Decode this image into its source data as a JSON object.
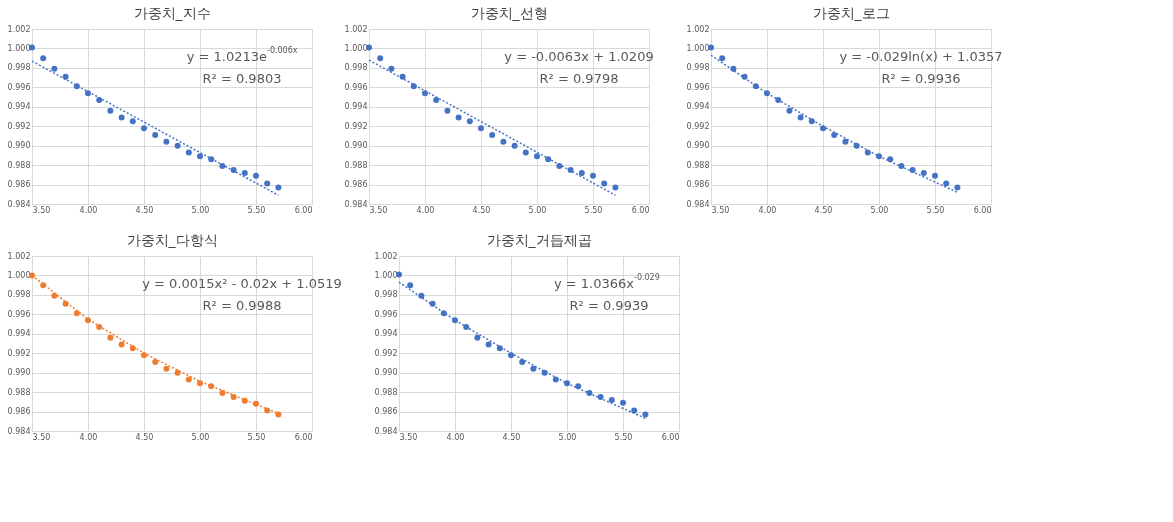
{
  "chart_data": [
    {
      "type": "scatter",
      "title": "가중치_지수",
      "xlim": [
        3.5,
        6.0
      ],
      "xticks": [
        {
          "value": 3.5,
          "label": "3.50"
        },
        {
          "value": 4.0,
          "label": "4.00"
        },
        {
          "value": 4.5,
          "label": "4.50"
        },
        {
          "value": 5.0,
          "label": "5.00"
        },
        {
          "value": 5.5,
          "label": "5.50"
        },
        {
          "value": 6.0,
          "label": "6.00"
        }
      ],
      "ylim": [
        0.984,
        1.002
      ],
      "yticks": [
        {
          "value": 0.984,
          "label": "0.984"
        },
        {
          "value": 0.986,
          "label": "0.986"
        },
        {
          "value": 0.988,
          "label": "0.988"
        },
        {
          "value": 0.99,
          "label": "0.990"
        },
        {
          "value": 0.992,
          "label": "0.992"
        },
        {
          "value": 0.994,
          "label": "0.994"
        },
        {
          "value": 0.996,
          "label": "0.996"
        },
        {
          "value": 0.998,
          "label": "0.998"
        },
        {
          "value": 1.0,
          "label": "1.000"
        },
        {
          "value": 1.002,
          "label": "1.002"
        }
      ],
      "grid": true,
      "annotations": [
        "y = 1.0213e$^{-0.006x}$",
        "R² = 0.9803"
      ],
      "series": [
        {
          "type": "scatter",
          "marker": "circle",
          "color": "#4472c4",
          "x": [
            3.5,
            3.6,
            3.7,
            3.8,
            3.9,
            4.0,
            4.1,
            4.2,
            4.3,
            4.4,
            4.5,
            4.6,
            4.7,
            4.8,
            4.9,
            5.0,
            5.1,
            5.2,
            5.3,
            5.4,
            5.5,
            5.6,
            5.7
          ],
          "values": [
            1.0001,
            0.999,
            0.9979,
            0.9971,
            0.9961,
            0.9954,
            0.9947,
            0.9936,
            0.9929,
            0.9925,
            0.9918,
            0.9911,
            0.9904,
            0.99,
            0.9893,
            0.9889,
            0.9886,
            0.9879,
            0.9875,
            0.9872,
            0.9869,
            0.9861,
            0.9857
          ]
        },
        {
          "type": "line",
          "line_style": "dotted",
          "color": "#4472c4",
          "x": [
            3.5,
            5.7
          ],
          "values": [
            0.9987,
            0.9849
          ]
        }
      ]
    },
    {
      "type": "scatter",
      "title": "가중치_선형",
      "xlim": [
        3.5,
        6.0
      ],
      "xticks": [
        {
          "value": 3.5,
          "label": "3.50"
        },
        {
          "value": 4.0,
          "label": "4.00"
        },
        {
          "value": 4.5,
          "label": "4.50"
        },
        {
          "value": 5.0,
          "label": "5.00"
        },
        {
          "value": 5.5,
          "label": "5.50"
        },
        {
          "value": 6.0,
          "label": "6.00"
        }
      ],
      "ylim": [
        0.984,
        1.002
      ],
      "yticks": [
        {
          "value": 0.984,
          "label": "0.984"
        },
        {
          "value": 0.986,
          "label": "0.986"
        },
        {
          "value": 0.988,
          "label": "0.988"
        },
        {
          "value": 0.99,
          "label": "0.990"
        },
        {
          "value": 0.992,
          "label": "0.992"
        },
        {
          "value": 0.994,
          "label": "0.994"
        },
        {
          "value": 0.996,
          "label": "0.996"
        },
        {
          "value": 0.998,
          "label": "0.998"
        },
        {
          "value": 1.0,
          "label": "1.000"
        },
        {
          "value": 1.002,
          "label": "1.002"
        }
      ],
      "grid": true,
      "annotations": [
        "y = -0.0063x + 1.0209",
        "R² = 0.9798"
      ],
      "series": [
        {
          "type": "scatter",
          "marker": "circle",
          "color": "#4472c4",
          "x": [
            3.5,
            3.6,
            3.7,
            3.8,
            3.9,
            4.0,
            4.1,
            4.2,
            4.3,
            4.4,
            4.5,
            4.6,
            4.7,
            4.8,
            4.9,
            5.0,
            5.1,
            5.2,
            5.3,
            5.4,
            5.5,
            5.6,
            5.7
          ],
          "values": [
            1.0001,
            0.999,
            0.9979,
            0.9971,
            0.9961,
            0.9954,
            0.9947,
            0.9936,
            0.9929,
            0.9925,
            0.9918,
            0.9911,
            0.9904,
            0.99,
            0.9893,
            0.9889,
            0.9886,
            0.9879,
            0.9875,
            0.9872,
            0.9869,
            0.9861,
            0.9857
          ]
        },
        {
          "type": "line",
          "line_style": "dotted",
          "color": "#4472c4",
          "x": [
            3.5,
            5.7
          ],
          "values": [
            0.9988,
            0.9849
          ]
        }
      ]
    },
    {
      "type": "scatter",
      "title": "가중치_로그",
      "xlim": [
        3.5,
        6.0
      ],
      "xticks": [
        {
          "value": 3.5,
          "label": "3.50"
        },
        {
          "value": 4.0,
          "label": "4.00"
        },
        {
          "value": 4.5,
          "label": "4.50"
        },
        {
          "value": 5.0,
          "label": "5.00"
        },
        {
          "value": 5.5,
          "label": "5.50"
        },
        {
          "value": 6.0,
          "label": "6.00"
        }
      ],
      "ylim": [
        0.984,
        1.002
      ],
      "yticks": [
        {
          "value": 0.984,
          "label": "0.984"
        },
        {
          "value": 0.986,
          "label": "0.986"
        },
        {
          "value": 0.988,
          "label": "0.988"
        },
        {
          "value": 0.99,
          "label": "0.990"
        },
        {
          "value": 0.992,
          "label": "0.992"
        },
        {
          "value": 0.994,
          "label": "0.994"
        },
        {
          "value": 0.996,
          "label": "0.996"
        },
        {
          "value": 0.998,
          "label": "0.998"
        },
        {
          "value": 1.0,
          "label": "1.000"
        },
        {
          "value": 1.002,
          "label": "1.002"
        }
      ],
      "grid": true,
      "annotations": [
        "y = -0.029ln(x) + 1.0357",
        "R² = 0.9936"
      ],
      "series": [
        {
          "type": "scatter",
          "marker": "circle",
          "color": "#4472c4",
          "x": [
            3.5,
            3.6,
            3.7,
            3.8,
            3.9,
            4.0,
            4.1,
            4.2,
            4.3,
            4.4,
            4.5,
            4.6,
            4.7,
            4.8,
            4.9,
            5.0,
            5.1,
            5.2,
            5.3,
            5.4,
            5.5,
            5.6,
            5.7
          ],
          "values": [
            1.0001,
            0.999,
            0.9979,
            0.9971,
            0.9961,
            0.9954,
            0.9947,
            0.9936,
            0.9929,
            0.9925,
            0.9918,
            0.9911,
            0.9904,
            0.99,
            0.9893,
            0.9889,
            0.9886,
            0.9879,
            0.9875,
            0.9872,
            0.9869,
            0.9861,
            0.9857
          ]
        },
        {
          "type": "line",
          "line_style": "dotted",
          "color": "#4472c4",
          "x": [
            3.5,
            4.0,
            4.5,
            5.0,
            5.7
          ],
          "values": [
            0.9993,
            0.9954,
            0.992,
            0.9889,
            0.9852
          ]
        }
      ]
    },
    {
      "type": "scatter",
      "title": "가중치_다항식",
      "xlim": [
        3.5,
        6.0
      ],
      "xticks": [
        {
          "value": 3.5,
          "label": "3.50"
        },
        {
          "value": 4.0,
          "label": "4.00"
        },
        {
          "value": 4.5,
          "label": "4.50"
        },
        {
          "value": 5.0,
          "label": "5.00"
        },
        {
          "value": 5.5,
          "label": "5.50"
        },
        {
          "value": 6.0,
          "label": "6.00"
        }
      ],
      "ylim": [
        0.984,
        1.002
      ],
      "yticks": [
        {
          "value": 0.984,
          "label": "0.984"
        },
        {
          "value": 0.986,
          "label": "0.986"
        },
        {
          "value": 0.988,
          "label": "0.988"
        },
        {
          "value": 0.99,
          "label": "0.990"
        },
        {
          "value": 0.992,
          "label": "0.992"
        },
        {
          "value": 0.994,
          "label": "0.994"
        },
        {
          "value": 0.996,
          "label": "0.996"
        },
        {
          "value": 0.998,
          "label": "0.998"
        },
        {
          "value": 1.0,
          "label": "1.000"
        },
        {
          "value": 1.002,
          "label": "1.002"
        }
      ],
      "grid": true,
      "annotations": [
        "y = 0.0015x² - 0.02x + 1.0519",
        "R² = 0.9988"
      ],
      "series": [
        {
          "type": "scatter",
          "marker": "circle",
          "color": "#ed7d31",
          "x": [
            3.5,
            3.6,
            3.7,
            3.8,
            3.9,
            4.0,
            4.1,
            4.2,
            4.3,
            4.4,
            4.5,
            4.6,
            4.7,
            4.8,
            4.9,
            5.0,
            5.1,
            5.2,
            5.3,
            5.4,
            5.5,
            5.6,
            5.7
          ],
          "values": [
            1.0,
            0.999,
            0.9979,
            0.9971,
            0.9961,
            0.9954,
            0.9947,
            0.9936,
            0.9929,
            0.9925,
            0.9918,
            0.9911,
            0.9904,
            0.99,
            0.9893,
            0.9889,
            0.9886,
            0.9879,
            0.9875,
            0.9871,
            0.9868,
            0.9861,
            0.9857
          ]
        },
        {
          "type": "line",
          "line_style": "dotted",
          "color": "#ed7d31",
          "x": [
            3.5,
            4.0,
            4.5,
            5.0,
            5.7
          ],
          "values": [
            1.0,
            0.9955,
            0.992,
            0.9891,
            0.9858
          ]
        }
      ]
    },
    {
      "type": "scatter",
      "title": "가중치_거듭제곱",
      "xlim": [
        3.5,
        6.0
      ],
      "xticks": [
        {
          "value": 3.5,
          "label": "3.50"
        },
        {
          "value": 4.0,
          "label": "4.00"
        },
        {
          "value": 4.5,
          "label": "4.50"
        },
        {
          "value": 5.0,
          "label": "5.00"
        },
        {
          "value": 5.5,
          "label": "5.50"
        },
        {
          "value": 6.0,
          "label": "6.00"
        }
      ],
      "ylim": [
        0.984,
        1.002
      ],
      "yticks": [
        {
          "value": 0.984,
          "label": "0.984"
        },
        {
          "value": 0.986,
          "label": "0.986"
        },
        {
          "value": 0.988,
          "label": "0.988"
        },
        {
          "value": 0.99,
          "label": "0.990"
        },
        {
          "value": 0.992,
          "label": "0.992"
        },
        {
          "value": 0.994,
          "label": "0.994"
        },
        {
          "value": 0.996,
          "label": "0.996"
        },
        {
          "value": 0.998,
          "label": "0.998"
        },
        {
          "value": 1.0,
          "label": "1.000"
        },
        {
          "value": 1.002,
          "label": "1.002"
        }
      ],
      "grid": true,
      "annotations": [
        "y = 1.0366x$^{-0.029}$",
        "R² = 0.9939"
      ],
      "series": [
        {
          "type": "scatter",
          "marker": "circle",
          "color": "#4472c4",
          "x": [
            3.5,
            3.6,
            3.7,
            3.8,
            3.9,
            4.0,
            4.1,
            4.2,
            4.3,
            4.4,
            4.5,
            4.6,
            4.7,
            4.8,
            4.9,
            5.0,
            5.1,
            5.2,
            5.3,
            5.4,
            5.5,
            5.6,
            5.7
          ],
          "values": [
            1.0001,
            0.999,
            0.9979,
            0.9971,
            0.9961,
            0.9954,
            0.9947,
            0.9936,
            0.9929,
            0.9925,
            0.9918,
            0.9911,
            0.9904,
            0.99,
            0.9893,
            0.9889,
            0.9886,
            0.9879,
            0.9875,
            0.9872,
            0.9869,
            0.9861,
            0.9857
          ]
        },
        {
          "type": "line",
          "line_style": "dotted",
          "color": "#4472c4",
          "x": [
            3.5,
            4.0,
            4.5,
            5.0,
            5.7
          ],
          "values": [
            0.9993,
            0.9954,
            0.992,
            0.9889,
            0.9853
          ]
        }
      ]
    }
  ]
}
